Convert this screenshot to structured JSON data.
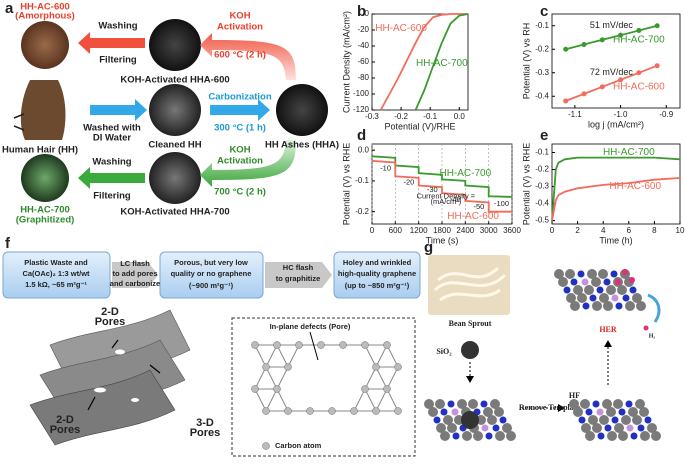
{
  "panel_labels": [
    "a",
    "b",
    "c",
    "d",
    "e",
    "f",
    "g"
  ],
  "scheme_a": {
    "texts": [
      "HH-AC-600",
      "(Amorphous)",
      "Washing",
      "Filtering",
      "KOH",
      "Activation",
      "600 °C (2 h)",
      "KOH-Activated HHA-600",
      "Human Hair (HH)",
      "Washed with",
      "DI Water",
      "Cleaned HH",
      "Carbonization",
      "300 °C (1 h)",
      "HH Ashes (HHA)",
      "KOH",
      "Activation",
      "700 °C (2 h)",
      "Washing",
      "Filtering",
      "KOH-Activated HHA-700",
      "HH-AC-700",
      "(Graphitized)"
    ]
  },
  "scheme_f": {
    "texts": [
      "Plastic Waste and",
      "Ca(OAc)₂ 1:3 wt/wt",
      "1.5 kΩ, ~65 m²g⁻¹",
      "LC flash",
      "to add pores",
      "and carbonize",
      "Porous, but very low",
      "quality or no graphene",
      "(~900  m²g⁻¹)",
      "HC flash",
      "to graphitize",
      "Holey and wrinkled",
      "high-quality graphene",
      "(up to ~850  m²g⁻¹)",
      "2-D",
      "Pores",
      "2-D",
      "Pores",
      "3-D",
      "Pores",
      "In-plane defects (Pore)",
      "Carbon atom"
    ]
  },
  "scheme_g": {
    "texts": [
      "Bean Sprout",
      "SiO₂",
      "HF",
      "Remove Template",
      "HER",
      "H₂"
    ]
  },
  "chart_data": [
    {
      "type": "line",
      "xlabel": "Potential (V)/RHE",
      "ylabel": "Current Density (mA/cm²)",
      "x": [
        -0.27,
        -0.24,
        -0.21,
        -0.18,
        -0.15,
        -0.12,
        -0.09,
        -0.06,
        -0.03,
        0,
        0.03
      ],
      "series": [
        {
          "name": "HH-AC-600",
          "color": "#f26b5b",
          "values": [
            -120,
            -100,
            -80,
            -58,
            -36,
            -16,
            -4,
            -1,
            0,
            0,
            0
          ]
        },
        {
          "name": "HH-AC-700",
          "color": "#3a9a2e",
          "values": [
            null,
            null,
            null,
            null,
            -120,
            -95,
            -65,
            -36,
            -12,
            -2,
            0
          ]
        }
      ],
      "xlim": [
        -0.3,
        0.03
      ],
      "xticks": [
        -0.3,
        -0.2,
        -0.1,
        {
          "value": 0,
          "label": "0.0"
        }
      ],
      "ylim": [
        -120,
        0
      ],
      "yticks": [
        0,
        -20,
        -40,
        -60,
        -80,
        -100,
        -120
      ]
    },
    {
      "type": "line",
      "markers": true,
      "xlabel": "log j (mA/cm²)",
      "ylabel": "Potential (V) vs RH",
      "annotations": [
        "51 mV/dec",
        "72 mV/dec"
      ],
      "x": [
        -1.12,
        -1.08,
        -1.04,
        -1.0,
        -0.96,
        -0.92
      ],
      "series": [
        {
          "name": "HH-AC-700",
          "color": "#3a9a2e",
          "values": [
            -0.2,
            -0.18,
            -0.16,
            -0.14,
            -0.12,
            -0.1
          ]
        },
        {
          "name": "HH-AC-600",
          "color": "#f26b5b",
          "values": [
            -0.42,
            -0.39,
            -0.36,
            -0.33,
            -0.3,
            -0.27
          ]
        }
      ],
      "xlim": [
        -1.15,
        -0.87
      ],
      "xticks": [
        -1.1,
        {
          "value": -1,
          "label": "-1.0"
        },
        -0.9
      ],
      "ylim": [
        -0.45,
        -0.05
      ],
      "yticks": [
        -0.1,
        -0.2,
        -0.3,
        -0.4
      ]
    },
    {
      "type": "line",
      "grid": "x",
      "xlabel": "Time (s)",
      "ylabel": "Potential (V) vs RHE",
      "annotations": [
        "-10",
        "-20",
        "-30",
        "-40",
        "-50",
        "-100",
        "Current Density =",
        "(mA/cm²)"
      ],
      "x": [
        0,
        600,
        600,
        1200,
        1200,
        1800,
        1800,
        2400,
        2400,
        3000,
        3000,
        3600
      ],
      "series": [
        {
          "name": "HH-AC-700",
          "color": "#3a9a2e",
          "values": [
            -0.02,
            -0.025,
            -0.05,
            -0.055,
            -0.075,
            -0.08,
            -0.095,
            -0.1,
            -0.115,
            -0.12,
            -0.15,
            -0.152
          ]
        },
        {
          "name": "HH-AC-600",
          "color": "#f26b5b",
          "values": [
            -0.035,
            -0.04,
            -0.085,
            -0.09,
            -0.115,
            -0.12,
            -0.14,
            -0.145,
            -0.165,
            -0.17,
            -0.2,
            -0.2
          ]
        }
      ],
      "xlim": [
        0,
        3600
      ],
      "xticks": [
        0,
        600,
        1200,
        1800,
        2400,
        3000,
        3600
      ],
      "ylim": [
        -0.24,
        0.02
      ],
      "yticks": [
        {
          "value": 0,
          "label": "0.0"
        },
        -0.1,
        -0.2
      ]
    },
    {
      "type": "line",
      "xlabel": "Time (h)",
      "ylabel": "Potential (V) vs RHE",
      "x": [
        0,
        0.3,
        0.5,
        1,
        2,
        4,
        6,
        8,
        10
      ],
      "series": [
        {
          "name": "HH-AC-700",
          "color": "#3a9a2e",
          "values": [
            -0.5,
            -0.2,
            -0.16,
            -0.14,
            -0.13,
            -0.13,
            -0.13,
            -0.13,
            -0.14
          ]
        },
        {
          "name": "HH-AC-600",
          "color": "#f26b5b",
          "values": [
            -0.5,
            -0.38,
            -0.35,
            -0.33,
            -0.31,
            -0.29,
            -0.28,
            -0.26,
            -0.25
          ]
        }
      ],
      "xlim": [
        0,
        10
      ],
      "xticks": [
        0,
        2,
        4,
        6,
        8,
        10
      ],
      "ylim": [
        -0.52,
        -0.05
      ],
      "yticks": [
        -0.1,
        -0.2,
        -0.3,
        -0.4,
        -0.5
      ]
    }
  ]
}
